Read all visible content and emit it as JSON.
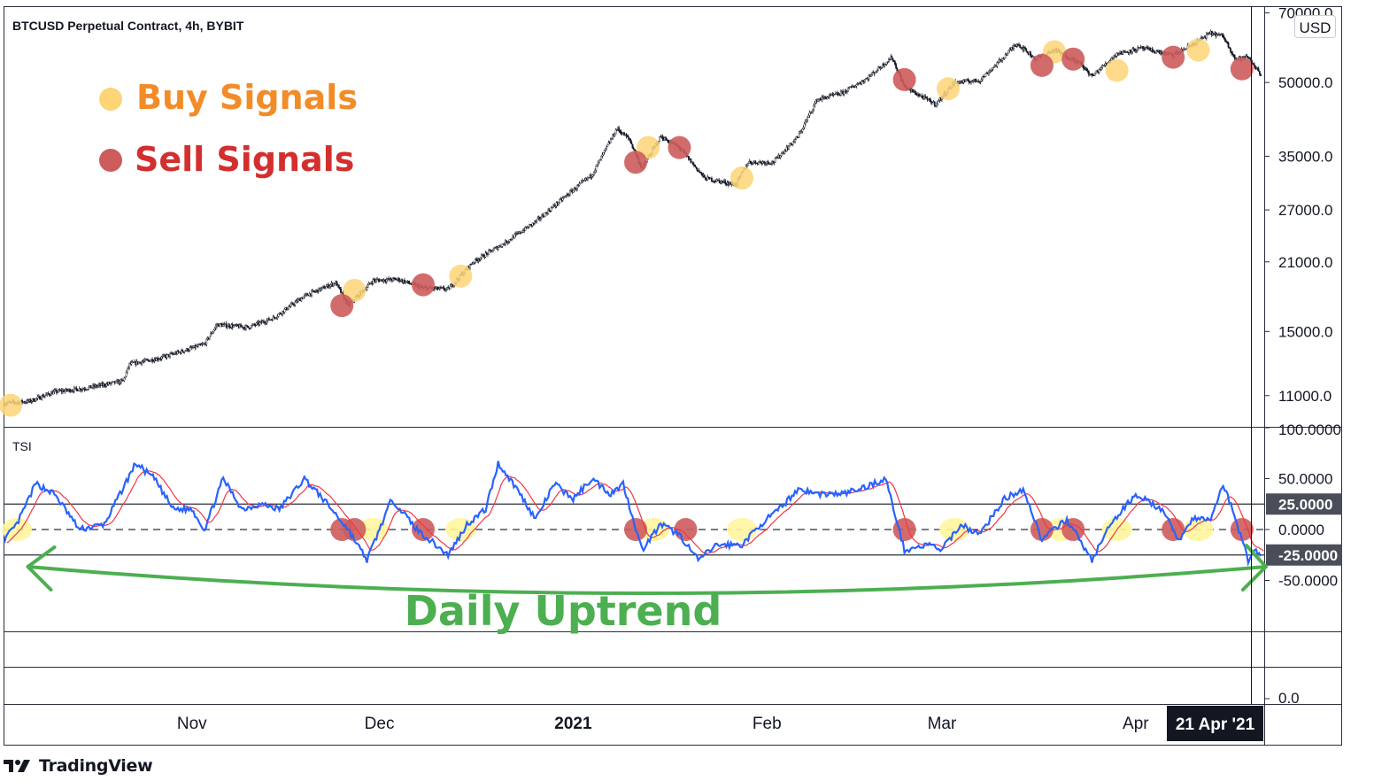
{
  "chart_data": {
    "type": "candlestick",
    "title": "BTCUSD Perpetual Contract, 4h, BYBIT",
    "currency": "USD",
    "yscale": "log",
    "ylim": [
      9500,
      72000
    ],
    "price_ticks": [
      "70000.0",
      "50000.0",
      "35000.0",
      "27000.0",
      "21000.0",
      "15000.0",
      "11000.0"
    ],
    "price_tick_values": [
      70000,
      50000,
      35000,
      27000,
      21000,
      15000,
      11000
    ],
    "x_ticks": [
      "Nov",
      "Dec",
      "2021",
      "Feb",
      "Mar",
      "Apr"
    ],
    "x_tick_dates": [
      "2020-11-01",
      "2020-12-01",
      "2021-01-01",
      "2021-02-01",
      "2021-03-01",
      "2021-04-01"
    ],
    "x_range": [
      "2020-10-02",
      "2021-04-21"
    ],
    "crosshair_date_label": "21 Apr '21",
    "price_path": [
      [
        "2020-10-02",
        10600
      ],
      [
        "2020-10-06",
        10700
      ],
      [
        "2020-10-10",
        11200
      ],
      [
        "2020-10-15",
        11400
      ],
      [
        "2020-10-21",
        11800
      ],
      [
        "2020-10-22",
        12800
      ],
      [
        "2020-10-27",
        13200
      ],
      [
        "2020-10-31",
        13700
      ],
      [
        "2020-11-03",
        14100
      ],
      [
        "2020-11-05",
        15500
      ],
      [
        "2020-11-10",
        15300
      ],
      [
        "2020-11-14",
        16000
      ],
      [
        "2020-11-19",
        17800
      ],
      [
        "2020-11-24",
        19000
      ],
      [
        "2020-11-26",
        17000
      ],
      [
        "2020-11-30",
        19200
      ],
      [
        "2020-12-04",
        19300
      ],
      [
        "2020-12-08",
        18500
      ],
      [
        "2020-12-12",
        18400
      ],
      [
        "2020-12-16",
        21000
      ],
      [
        "2020-12-21",
        23000
      ],
      [
        "2020-12-26",
        25500
      ],
      [
        "2020-12-31",
        29000
      ],
      [
        "2021-01-04",
        32000
      ],
      [
        "2021-01-08",
        40000
      ],
      [
        "2021-01-10",
        38000
      ],
      [
        "2021-01-12",
        33000
      ],
      [
        "2021-01-15",
        38500
      ],
      [
        "2021-01-18",
        36500
      ],
      [
        "2021-01-22",
        31500
      ],
      [
        "2021-01-27",
        30500
      ],
      [
        "2021-01-29",
        34000
      ],
      [
        "2021-02-02",
        34000
      ],
      [
        "2021-02-06",
        38500
      ],
      [
        "2021-02-09",
        46000
      ],
      [
        "2021-02-13",
        47500
      ],
      [
        "2021-02-17",
        51000
      ],
      [
        "2021-02-21",
        56500
      ],
      [
        "2021-02-23",
        49000
      ],
      [
        "2021-02-26",
        46500
      ],
      [
        "2021-02-28",
        45000
      ],
      [
        "2021-03-03",
        50000
      ],
      [
        "2021-03-07",
        50500
      ],
      [
        "2021-03-10",
        55000
      ],
      [
        "2021-03-13",
        60500
      ],
      [
        "2021-03-16",
        56000
      ],
      [
        "2021-03-19",
        58500
      ],
      [
        "2021-03-23",
        55000
      ],
      [
        "2021-03-25",
        51500
      ],
      [
        "2021-03-29",
        57500
      ],
      [
        "2021-04-02",
        59000
      ],
      [
        "2021-04-07",
        57000
      ],
      [
        "2021-04-10",
        60000
      ],
      [
        "2021-04-13",
        63500
      ],
      [
        "2021-04-15",
        62500
      ],
      [
        "2021-04-17",
        56000
      ],
      [
        "2021-04-19",
        56500
      ],
      [
        "2021-04-21",
        52000
      ]
    ],
    "legend": {
      "buy_label": "Buy Signals",
      "sell_label": "Sell Signals",
      "buy_color": "#fdd577",
      "sell_color": "#cd5c5c"
    },
    "buy_signals": [
      [
        "2020-10-03",
        10500
      ],
      [
        "2020-11-27",
        18300
      ],
      [
        "2020-12-14",
        19600
      ],
      [
        "2021-01-13",
        36500
      ],
      [
        "2021-01-28",
        31500
      ],
      [
        "2021-03-02",
        48500
      ],
      [
        "2021-03-19",
        58000
      ],
      [
        "2021-03-29",
        53000
      ],
      [
        "2021-04-11",
        58500
      ]
    ],
    "sell_signals": [
      [
        "2020-11-25",
        17000
      ],
      [
        "2020-12-08",
        18800
      ],
      [
        "2021-01-11",
        34000
      ],
      [
        "2021-01-18",
        36500
      ],
      [
        "2021-02-23",
        50700
      ],
      [
        "2021-03-17",
        54300
      ],
      [
        "2021-03-22",
        56000
      ],
      [
        "2021-04-07",
        56500
      ],
      [
        "2021-04-18",
        53400
      ]
    ],
    "tsi": {
      "label": "TSI",
      "ylim": [
        -100,
        100
      ],
      "ticks": [
        "100.0000",
        "50.0000",
        "0.0000",
        "-50.0000"
      ],
      "tick_values": [
        100,
        50,
        0,
        -50
      ],
      "levels": [
        25,
        0,
        -25
      ],
      "level_labels": [
        "25.0000",
        "-25.0000"
      ],
      "tsi_color": "#2962ff",
      "signal_color": "#f23645",
      "tsi_path": [
        [
          "2020-10-02",
          -10
        ],
        [
          "2020-10-04",
          5
        ],
        [
          "2020-10-07",
          45
        ],
        [
          "2020-10-10",
          35
        ],
        [
          "2020-10-14",
          0
        ],
        [
          "2020-10-18",
          5
        ],
        [
          "2020-10-23",
          65
        ],
        [
          "2020-10-26",
          50
        ],
        [
          "2020-10-29",
          20
        ],
        [
          "2020-11-01",
          20
        ],
        [
          "2020-11-03",
          0
        ],
        [
          "2020-11-06",
          50
        ],
        [
          "2020-11-09",
          20
        ],
        [
          "2020-11-12",
          25
        ],
        [
          "2020-11-15",
          20
        ],
        [
          "2020-11-19",
          50
        ],
        [
          "2020-11-22",
          30
        ],
        [
          "2020-11-26",
          0
        ],
        [
          "2020-11-29",
          -30
        ],
        [
          "2020-12-03",
          30
        ],
        [
          "2020-12-07",
          0
        ],
        [
          "2020-12-09",
          -10
        ],
        [
          "2020-12-12",
          -25
        ],
        [
          "2020-12-15",
          5
        ],
        [
          "2020-12-18",
          20
        ],
        [
          "2020-12-20",
          65
        ],
        [
          "2020-12-23",
          40
        ],
        [
          "2020-12-26",
          10
        ],
        [
          "2020-12-29",
          45
        ],
        [
          "2021-01-01",
          30
        ],
        [
          "2021-01-04",
          50
        ],
        [
          "2021-01-07",
          35
        ],
        [
          "2021-01-09",
          45
        ],
        [
          "2021-01-12",
          -20
        ],
        [
          "2021-01-15",
          5
        ],
        [
          "2021-01-18",
          -5
        ],
        [
          "2021-01-21",
          -30
        ],
        [
          "2021-01-24",
          -15
        ],
        [
          "2021-01-28",
          -15
        ],
        [
          "2021-01-31",
          5
        ],
        [
          "2021-02-03",
          20
        ],
        [
          "2021-02-06",
          40
        ],
        [
          "2021-02-09",
          35
        ],
        [
          "2021-02-13",
          35
        ],
        [
          "2021-02-16",
          40
        ],
        [
          "2021-02-20",
          50
        ],
        [
          "2021-02-23",
          -20
        ],
        [
          "2021-02-27",
          -15
        ],
        [
          "2021-03-01",
          -20
        ],
        [
          "2021-03-04",
          5
        ],
        [
          "2021-03-07",
          -5
        ],
        [
          "2021-03-11",
          30
        ],
        [
          "2021-03-14",
          40
        ],
        [
          "2021-03-17",
          -10
        ],
        [
          "2021-03-21",
          10
        ],
        [
          "2021-03-25",
          -30
        ],
        [
          "2021-03-28",
          5
        ],
        [
          "2021-04-01",
          35
        ],
        [
          "2021-04-05",
          20
        ],
        [
          "2021-04-08",
          -10
        ],
        [
          "2021-04-10",
          10
        ],
        [
          "2021-04-13",
          10
        ],
        [
          "2021-04-15",
          45
        ],
        [
          "2021-04-17",
          10
        ],
        [
          "2021-04-19",
          -30
        ],
        [
          "2021-04-20",
          -20
        ],
        [
          "2021-04-21",
          -25
        ]
      ],
      "buy_signals": [
        [
          "2020-10-04",
          0
        ],
        [
          "2020-11-30",
          0
        ],
        [
          "2020-12-14",
          0
        ],
        [
          "2021-01-14",
          0
        ],
        [
          "2021-01-28",
          0
        ],
        [
          "2021-03-03",
          0
        ],
        [
          "2021-03-20",
          0
        ],
        [
          "2021-03-29",
          0
        ],
        [
          "2021-04-11",
          0
        ]
      ],
      "sell_signals": [
        [
          "2020-11-25",
          0
        ],
        [
          "2020-11-27",
          0
        ],
        [
          "2020-12-08",
          0
        ],
        [
          "2021-01-11",
          0
        ],
        [
          "2021-01-19",
          0
        ],
        [
          "2021-02-23",
          0
        ],
        [
          "2021-03-17",
          0
        ],
        [
          "2021-03-22",
          0
        ],
        [
          "2021-04-07",
          0
        ],
        [
          "2021-04-18",
          0
        ]
      ]
    },
    "lower_pane": {
      "ticks": [
        "0.0"
      ]
    },
    "annotation": {
      "text": "Daily Uptrend",
      "color": "#4caf50",
      "from": "2020-10-10",
      "to": "2021-04-19"
    }
  },
  "branding": {
    "name": "TradingView"
  }
}
